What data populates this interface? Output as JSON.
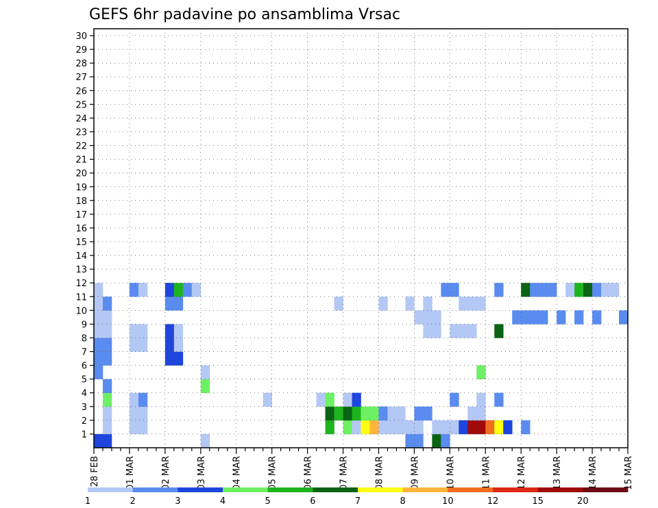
{
  "chart_data": {
    "type": "heatmap",
    "title": "GEFS 6hr padavine po ansamblima Vrsac",
    "x_labels": [
      "28 FEB",
      "01 MAR",
      "02 MAR",
      "03 MAR",
      "04 MAR",
      "05 MAR",
      "06 MAR",
      "07 MAR",
      "08 MAR",
      "09 MAR",
      "10 MAR",
      "11 MAR",
      "12 MAR",
      "13 MAR",
      "14 MAR",
      "15 MAR"
    ],
    "y_labels": [
      "1",
      "2",
      "3",
      "4",
      "5",
      "6",
      "7",
      "8",
      "9",
      "10",
      "11",
      "12",
      "13",
      "14",
      "15",
      "16",
      "17",
      "18",
      "19",
      "20",
      "21",
      "22",
      "23",
      "24",
      "25",
      "26",
      "27",
      "28",
      "29",
      "30"
    ],
    "xlim": [
      0,
      60
    ],
    "ylim": [
      0,
      30
    ],
    "grid": true,
    "legend": {
      "labels": [
        "1",
        "2",
        "3",
        "4",
        "5",
        "6",
        "7",
        "8",
        "10",
        "12",
        "15",
        "20"
      ],
      "colors": [
        "#b4c8f5",
        "#5a8cf0",
        "#1e46dc",
        "#6ef064",
        "#1eb41e",
        "#0a6414",
        "#ffff14",
        "#ffb43c",
        "#f06e1e",
        "#dc2814",
        "#a00a0a",
        "#6e0a14"
      ]
    },
    "cells": [
      [
        0,
        0,
        3
      ],
      [
        1,
        0,
        3
      ],
      [
        12,
        0,
        1
      ],
      [
        35,
        0,
        2
      ],
      [
        36,
        0,
        2
      ],
      [
        38,
        0,
        6
      ],
      [
        39,
        0,
        2
      ],
      [
        1,
        1,
        1
      ],
      [
        4,
        1,
        1
      ],
      [
        5,
        1,
        1
      ],
      [
        26,
        1,
        5
      ],
      [
        28,
        1,
        4
      ],
      [
        29,
        1,
        1
      ],
      [
        30,
        1,
        7
      ],
      [
        31,
        1,
        8
      ],
      [
        32,
        1,
        1
      ],
      [
        33,
        1,
        1
      ],
      [
        34,
        1,
        1
      ],
      [
        35,
        1,
        1
      ],
      [
        36,
        1,
        1
      ],
      [
        38,
        1,
        1
      ],
      [
        39,
        1,
        1
      ],
      [
        40,
        1,
        1
      ],
      [
        41,
        1,
        3
      ],
      [
        42,
        1,
        11
      ],
      [
        43,
        1,
        11
      ],
      [
        44,
        1,
        9
      ],
      [
        45,
        1,
        7
      ],
      [
        46,
        1,
        3
      ],
      [
        48,
        1,
        2
      ],
      [
        1,
        2,
        1
      ],
      [
        4,
        2,
        1
      ],
      [
        5,
        2,
        1
      ],
      [
        26,
        2,
        6
      ],
      [
        27,
        2,
        5
      ],
      [
        28,
        2,
        6
      ],
      [
        29,
        2,
        5
      ],
      [
        30,
        2,
        4
      ],
      [
        31,
        2,
        4
      ],
      [
        32,
        2,
        2
      ],
      [
        33,
        2,
        1
      ],
      [
        34,
        2,
        1
      ],
      [
        36,
        2,
        2
      ],
      [
        37,
        2,
        2
      ],
      [
        42,
        2,
        1
      ],
      [
        43,
        2,
        1
      ],
      [
        1,
        3,
        4
      ],
      [
        4,
        3,
        1
      ],
      [
        5,
        3,
        2
      ],
      [
        19,
        3,
        1
      ],
      [
        25,
        3,
        1
      ],
      [
        26,
        3,
        4
      ],
      [
        28,
        3,
        1
      ],
      [
        29,
        3,
        3
      ],
      [
        40,
        3,
        2
      ],
      [
        43,
        3,
        1
      ],
      [
        45,
        3,
        2
      ],
      [
        1,
        4,
        2
      ],
      [
        12,
        4,
        4
      ],
      [
        0,
        5,
        2
      ],
      [
        12,
        5,
        1
      ],
      [
        43,
        5,
        4
      ],
      [
        0,
        6,
        2
      ],
      [
        1,
        6,
        2
      ],
      [
        8,
        6,
        3
      ],
      [
        9,
        6,
        3
      ],
      [
        0,
        7,
        2
      ],
      [
        1,
        7,
        2
      ],
      [
        4,
        7,
        1
      ],
      [
        5,
        7,
        1
      ],
      [
        8,
        7,
        3
      ],
      [
        9,
        7,
        1
      ],
      [
        0,
        8,
        1
      ],
      [
        1,
        8,
        1
      ],
      [
        4,
        8,
        1
      ],
      [
        5,
        8,
        1
      ],
      [
        8,
        8,
        3
      ],
      [
        9,
        8,
        1
      ],
      [
        37,
        8,
        1
      ],
      [
        38,
        8,
        1
      ],
      [
        40,
        8,
        1
      ],
      [
        41,
        8,
        1
      ],
      [
        42,
        8,
        1
      ],
      [
        45,
        8,
        6
      ],
      [
        0,
        9,
        1
      ],
      [
        1,
        9,
        1
      ],
      [
        1,
        9,
        1
      ],
      [
        0,
        9,
        1
      ],
      [
        36,
        9,
        1
      ],
      [
        37,
        9,
        1
      ],
      [
        38,
        9,
        1
      ],
      [
        47,
        9,
        2
      ],
      [
        48,
        9,
        2
      ],
      [
        49,
        9,
        2
      ],
      [
        50,
        9,
        2
      ],
      [
        52,
        9,
        2
      ],
      [
        54,
        9,
        2
      ],
      [
        56,
        9,
        2
      ],
      [
        59,
        9,
        2
      ],
      [
        0,
        10,
        1
      ],
      [
        1,
        10,
        2
      ],
      [
        8,
        10,
        2
      ],
      [
        9,
        10,
        2
      ],
      [
        27,
        10,
        1
      ],
      [
        32,
        10,
        1
      ],
      [
        35,
        10,
        1
      ],
      [
        37,
        10,
        1
      ],
      [
        41,
        10,
        1
      ],
      [
        42,
        10,
        1
      ],
      [
        43,
        10,
        1
      ],
      [
        0,
        11,
        1
      ],
      [
        4,
        11,
        2
      ],
      [
        5,
        11,
        1
      ],
      [
        8,
        11,
        3
      ],
      [
        9,
        11,
        5
      ],
      [
        10,
        11,
        2
      ],
      [
        11,
        11,
        1
      ],
      [
        39,
        11,
        2
      ],
      [
        40,
        11,
        2
      ],
      [
        45,
        11,
        2
      ],
      [
        48,
        11,
        6
      ],
      [
        49,
        11,
        2
      ],
      [
        50,
        11,
        2
      ],
      [
        51,
        11,
        2
      ],
      [
        53,
        11,
        1
      ],
      [
        54,
        11,
        5
      ],
      [
        55,
        11,
        6
      ],
      [
        56,
        11,
        2
      ],
      [
        57,
        11,
        1
      ],
      [
        58,
        11,
        1
      ]
    ]
  }
}
